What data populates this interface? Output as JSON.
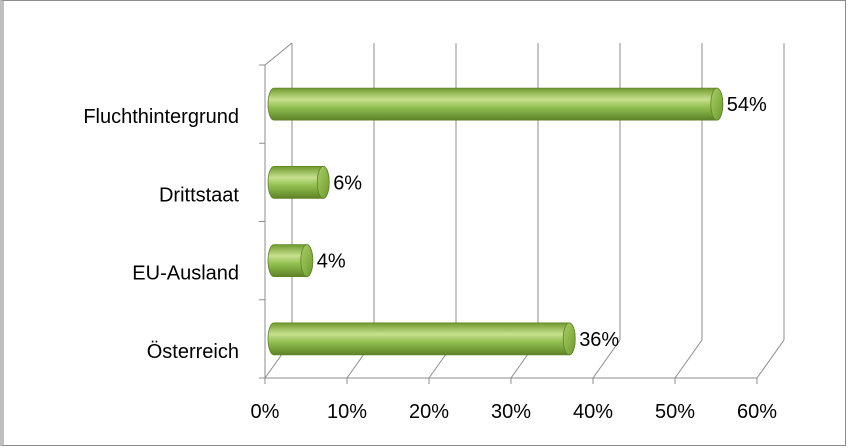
{
  "chart_data": {
    "type": "bar",
    "orientation": "horizontal",
    "style": "3d-cylinder",
    "categories": [
      "Fluchthintergrund",
      "Drittstaat",
      "EU-Ausland",
      "Österreich"
    ],
    "values": [
      54,
      6,
      4,
      36
    ],
    "data_labels": [
      "54%",
      "6%",
      "4%",
      "36%"
    ],
    "xlim": [
      0,
      60
    ],
    "x_ticks": [
      0,
      10,
      20,
      30,
      40,
      50,
      60
    ],
    "x_tick_labels": [
      "0%",
      "10%",
      "20%",
      "30%",
      "40%",
      "50%",
      "60%"
    ],
    "grid": true,
    "legend": "none",
    "colors": {
      "bar": "#92c050",
      "bar_dark": "#5e8227",
      "bar_light": "#c7e08e",
      "grid": "#8c8c8c"
    }
  }
}
